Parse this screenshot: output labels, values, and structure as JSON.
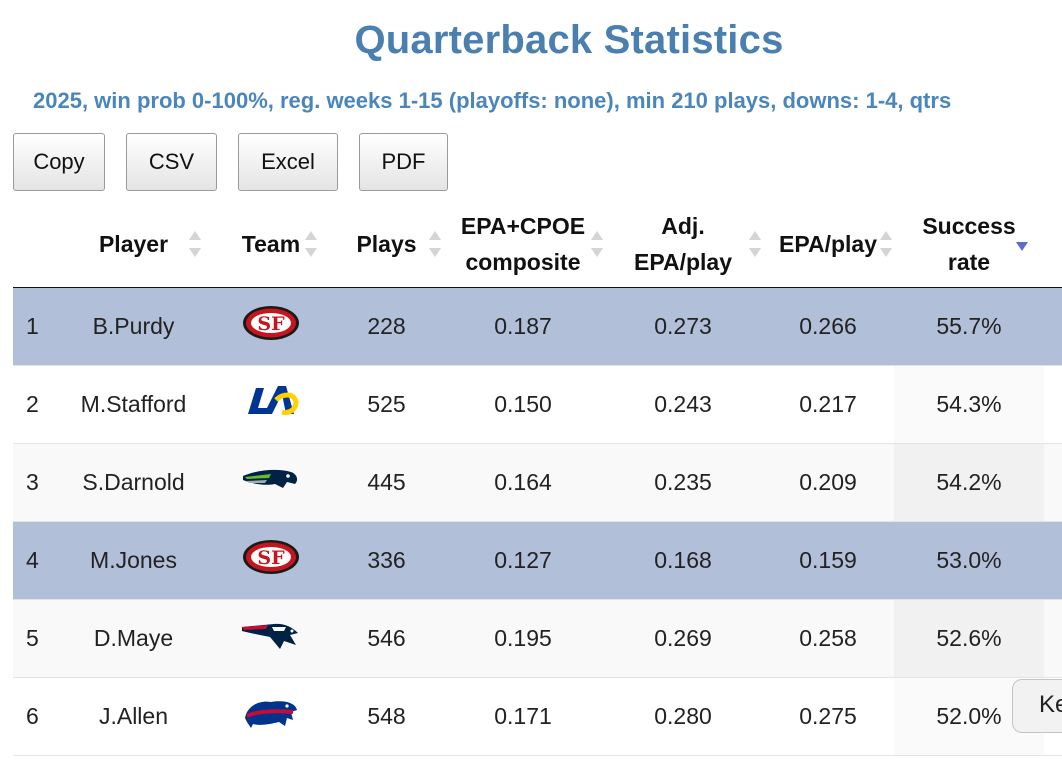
{
  "page": {
    "title": "Quarterback Statistics",
    "subtitle": "2025, win prob 0-100%, reg. weeks 1-15 (playoffs: none), min 210 plays, downs: 1-4, qtrs"
  },
  "buttons": {
    "copy": "Copy",
    "csv": "CSV",
    "excel": "Excel",
    "pdf": "PDF"
  },
  "table": {
    "columns": {
      "player": "Player",
      "team": "Team",
      "plays": "Plays",
      "composite_1": "EPA+CPOE",
      "composite_2": "composite",
      "adj_1": "Adj.",
      "adj_2": "EPA/play",
      "epa": "EPA/play",
      "success_1": "Success",
      "success_2": "rate"
    },
    "rows": [
      {
        "rank": "1",
        "player": "B.Purdy",
        "team": "49ers",
        "plays": "228",
        "composite": "0.187",
        "adj_epa": "0.273",
        "epa": "0.266",
        "success": "55.7%"
      },
      {
        "rank": "2",
        "player": "M.Stafford",
        "team": "Rams",
        "plays": "525",
        "composite": "0.150",
        "adj_epa": "0.243",
        "epa": "0.217",
        "success": "54.3%"
      },
      {
        "rank": "3",
        "player": "S.Darnold",
        "team": "Seahawks",
        "plays": "445",
        "composite": "0.164",
        "adj_epa": "0.235",
        "epa": "0.209",
        "success": "54.2%"
      },
      {
        "rank": "4",
        "player": "M.Jones",
        "team": "49ers",
        "plays": "336",
        "composite": "0.127",
        "adj_epa": "0.168",
        "epa": "0.159",
        "success": "53.0%"
      },
      {
        "rank": "5",
        "player": "D.Maye",
        "team": "Patriots",
        "plays": "546",
        "composite": "0.195",
        "adj_epa": "0.269",
        "epa": "0.258",
        "success": "52.6%"
      },
      {
        "rank": "6",
        "player": "J.Allen",
        "team": "Bills",
        "plays": "548",
        "composite": "0.171",
        "adj_epa": "0.280",
        "epa": "0.275",
        "success": "52.0%"
      }
    ]
  },
  "overlay": {
    "keyboard_button": "Ke"
  },
  "colors": {
    "title": "#4a7fb0",
    "subtitle": "#4a86bb",
    "selected_row": "#b2bfd8",
    "sort_active": "#5a6bd2"
  }
}
